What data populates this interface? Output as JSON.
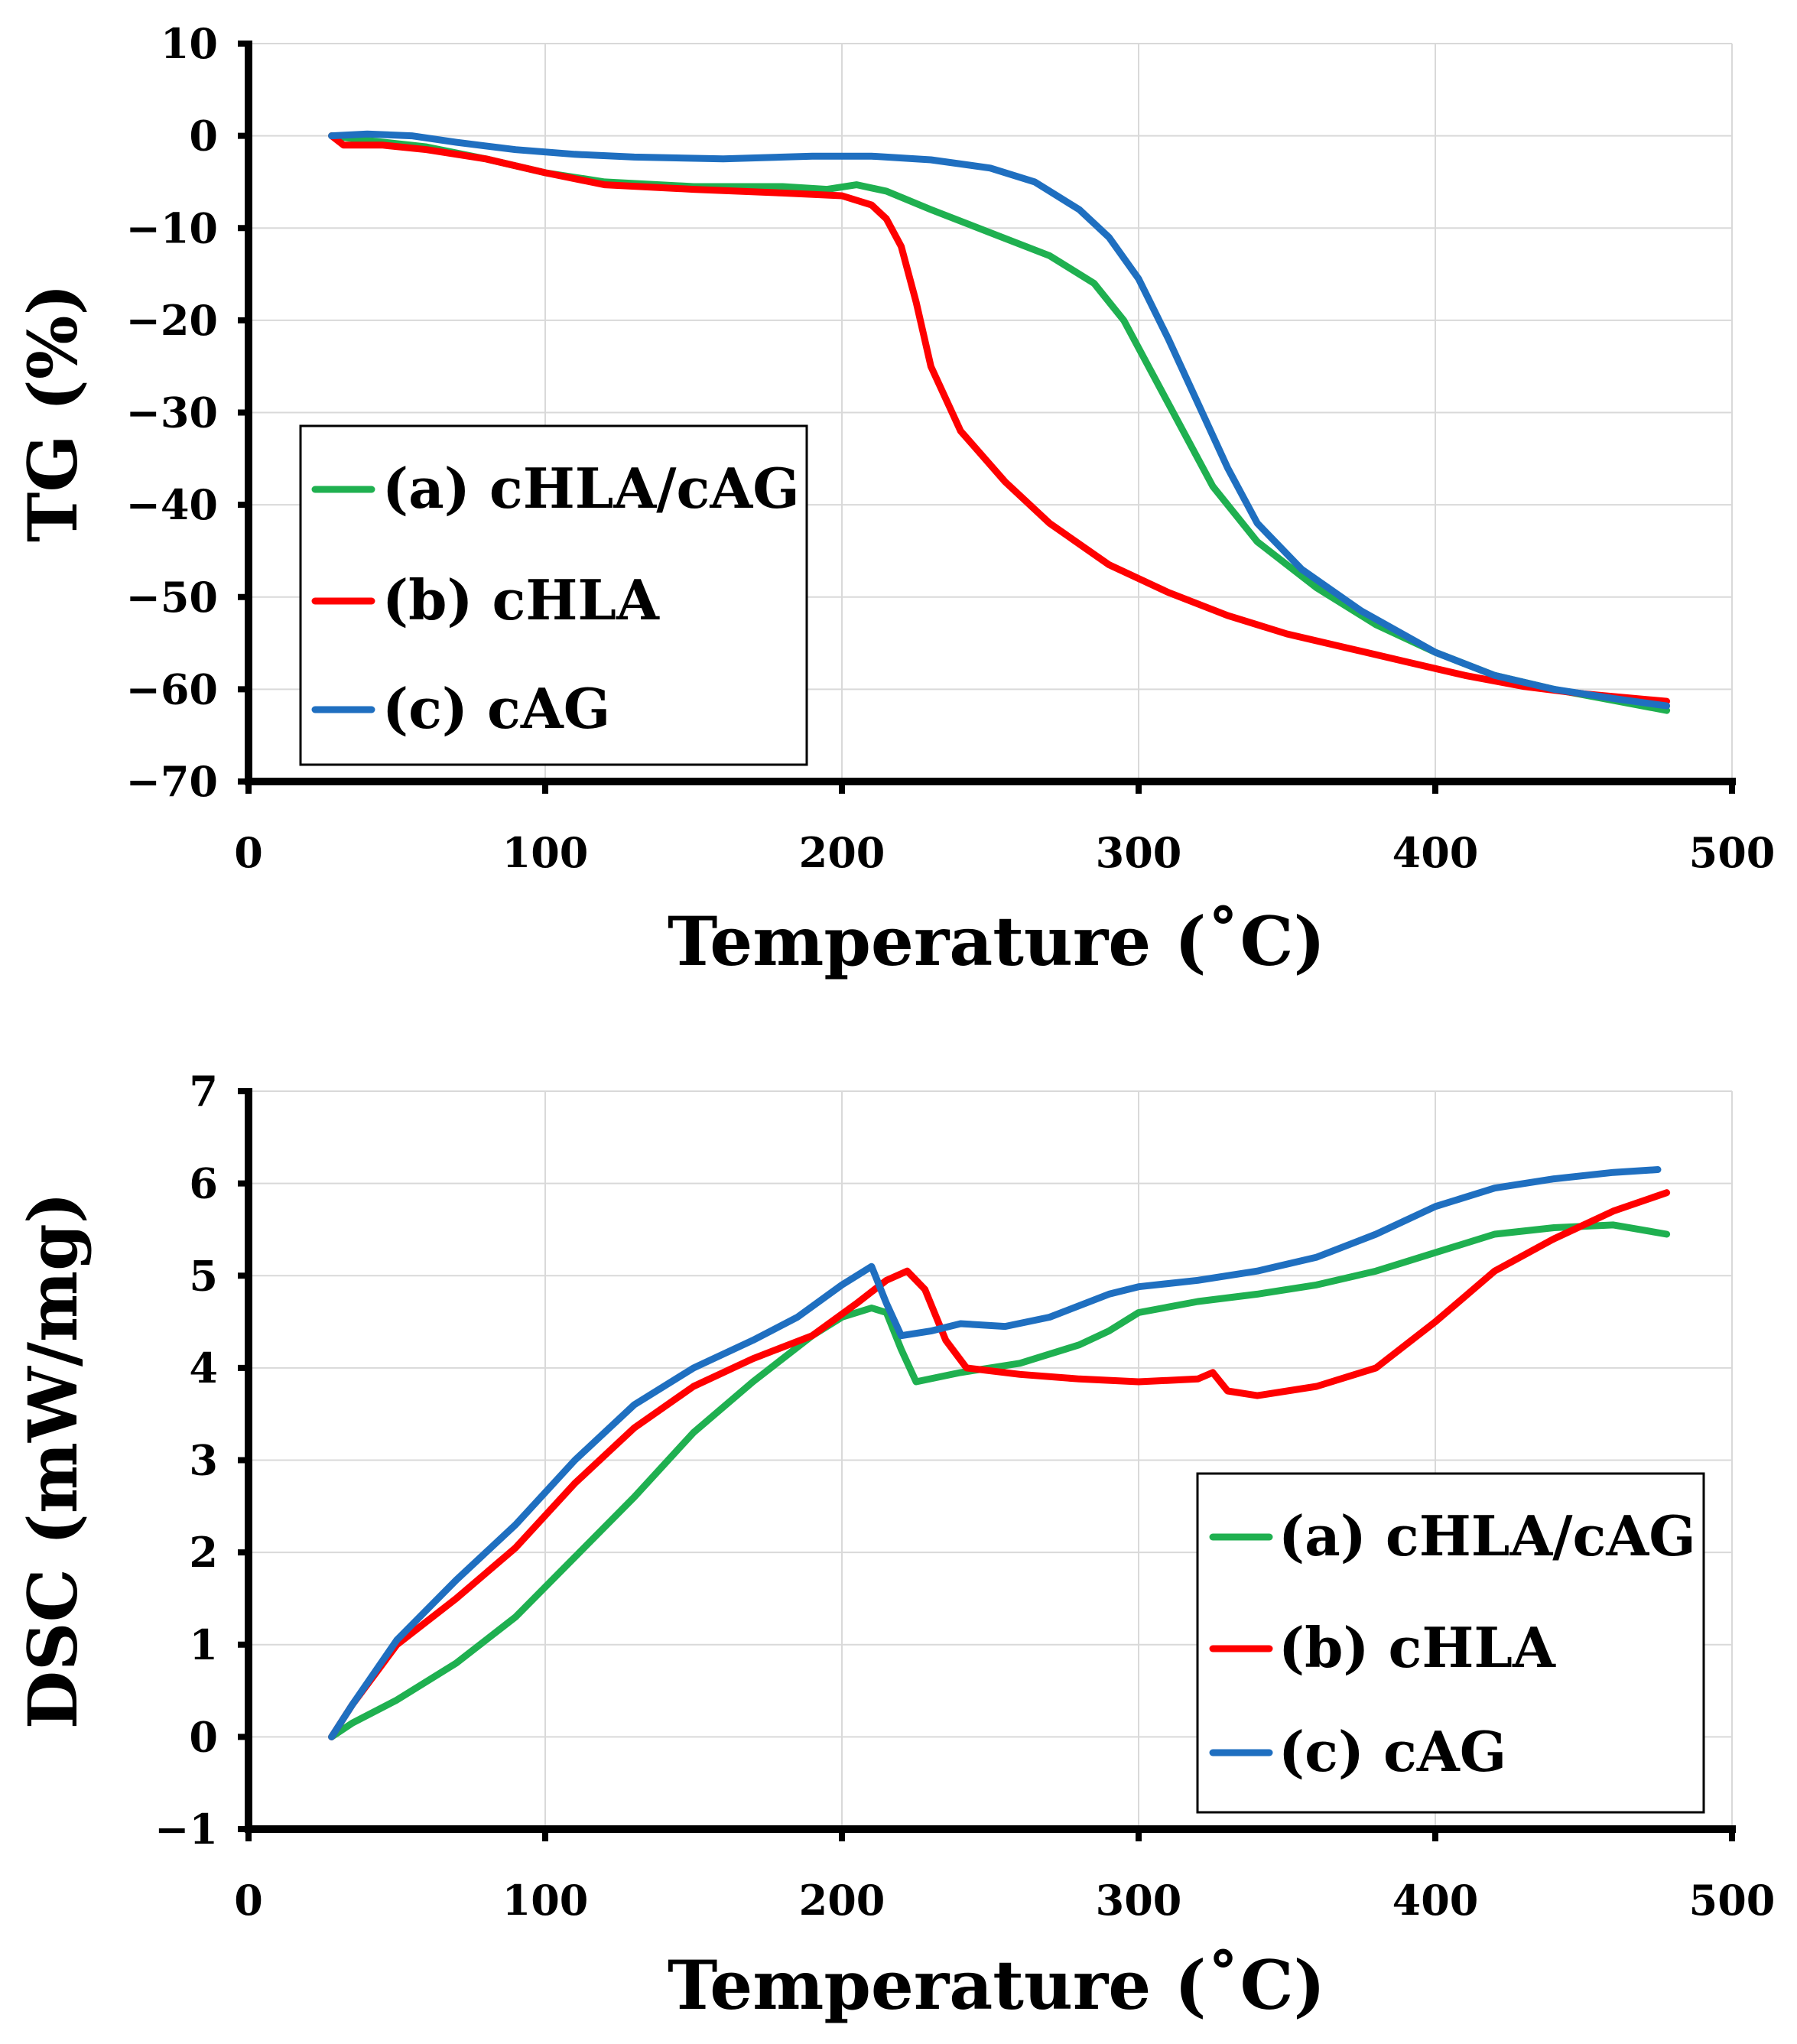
{
  "colors": {
    "a": "#1fb050",
    "b": "#ff0000",
    "c": "#1f6fc0"
  },
  "chart_data": [
    {
      "type": "line",
      "title": "",
      "xlabel": "Temperature (˚C)",
      "ylabel": "TG (%)",
      "xlim": [
        0,
        500
      ],
      "ylim": [
        -70,
        10
      ],
      "xticks": [
        0,
        100,
        200,
        300,
        400,
        500
      ],
      "yticks": [
        10,
        0,
        -10,
        -20,
        -30,
        -40,
        -50,
        -60,
        -70
      ],
      "xtick_labels": [
        "0",
        "100",
        "200",
        "300",
        "400",
        "500"
      ],
      "ytick_labels": [
        "10",
        "0",
        "−10",
        "−20",
        "−30",
        "−40",
        "−50",
        "−60",
        "−70"
      ],
      "grid": true,
      "legend": "left",
      "series": [
        {
          "name": "(a) cHLA/cAG",
          "color_key": "a",
          "points": [
            [
              28,
              0
            ],
            [
              40,
              -0.5
            ],
            [
              60,
              -1.2
            ],
            [
              80,
              -2.5
            ],
            [
              100,
              -4
            ],
            [
              120,
              -5
            ],
            [
              150,
              -5.5
            ],
            [
              180,
              -5.5
            ],
            [
              195,
              -5.8
            ],
            [
              205,
              -5.3
            ],
            [
              215,
              -6
            ],
            [
              230,
              -8
            ],
            [
              250,
              -10.5
            ],
            [
              270,
              -13
            ],
            [
              285,
              -16
            ],
            [
              295,
              -20
            ],
            [
              305,
              -26
            ],
            [
              315,
              -32
            ],
            [
              325,
              -38
            ],
            [
              340,
              -44
            ],
            [
              360,
              -49
            ],
            [
              380,
              -53
            ],
            [
              400,
              -56
            ],
            [
              420,
              -58.5
            ],
            [
              440,
              -60
            ],
            [
              460,
              -61.2
            ],
            [
              478,
              -62.3
            ]
          ]
        },
        {
          "name": "(b) cHLA",
          "color_key": "b",
          "points": [
            [
              28,
              0
            ],
            [
              32,
              -1
            ],
            [
              45,
              -1
            ],
            [
              60,
              -1.5
            ],
            [
              80,
              -2.5
            ],
            [
              100,
              -4
            ],
            [
              120,
              -5.3
            ],
            [
              150,
              -5.8
            ],
            [
              180,
              -6.2
            ],
            [
              200,
              -6.5
            ],
            [
              210,
              -7.5
            ],
            [
              215,
              -9
            ],
            [
              220,
              -12
            ],
            [
              225,
              -18
            ],
            [
              230,
              -25
            ],
            [
              240,
              -32
            ],
            [
              255,
              -37.5
            ],
            [
              270,
              -42
            ],
            [
              290,
              -46.5
            ],
            [
              310,
              -49.5
            ],
            [
              330,
              -52
            ],
            [
              350,
              -54
            ],
            [
              370,
              -55.5
            ],
            [
              390,
              -57
            ],
            [
              410,
              -58.5
            ],
            [
              430,
              -59.7
            ],
            [
              450,
              -60.5
            ],
            [
              478,
              -61.3
            ]
          ]
        },
        {
          "name": "(c) cAG",
          "color_key": "c",
          "points": [
            [
              28,
              0
            ],
            [
              40,
              0.2
            ],
            [
              55,
              0
            ],
            [
              70,
              -0.7
            ],
            [
              90,
              -1.5
            ],
            [
              110,
              -2
            ],
            [
              130,
              -2.3
            ],
            [
              160,
              -2.5
            ],
            [
              190,
              -2.2
            ],
            [
              210,
              -2.2
            ],
            [
              230,
              -2.6
            ],
            [
              250,
              -3.5
            ],
            [
              265,
              -5
            ],
            [
              280,
              -8
            ],
            [
              290,
              -11
            ],
            [
              300,
              -15.5
            ],
            [
              310,
              -22
            ],
            [
              320,
              -29
            ],
            [
              330,
              -36
            ],
            [
              340,
              -42
            ],
            [
              355,
              -47
            ],
            [
              375,
              -51.5
            ],
            [
              400,
              -56
            ],
            [
              420,
              -58.5
            ],
            [
              440,
              -60
            ],
            [
              460,
              -61
            ],
            [
              478,
              -61.8
            ]
          ]
        }
      ]
    },
    {
      "type": "line",
      "title": "",
      "xlabel": "Temperature (˚C)",
      "ylabel": "DSC (mW/mg)",
      "xlim": [
        0,
        500
      ],
      "ylim": [
        -1,
        7
      ],
      "xticks": [
        0,
        100,
        200,
        300,
        400,
        500
      ],
      "yticks": [
        7,
        6,
        5,
        4,
        3,
        2,
        1,
        0,
        -1
      ],
      "xtick_labels": [
        "0",
        "100",
        "200",
        "300",
        "400",
        "500"
      ],
      "ytick_labels": [
        "7",
        "6",
        "5",
        "4",
        "3",
        "2",
        "1",
        "0",
        "−1"
      ],
      "grid": true,
      "legend": "bottom-right",
      "series": [
        {
          "name": "(a) cHLA/cAG",
          "color_key": "a",
          "points": [
            [
              28,
              0
            ],
            [
              35,
              0.15
            ],
            [
              50,
              0.4
            ],
            [
              70,
              0.8
            ],
            [
              90,
              1.3
            ],
            [
              110,
              1.95
            ],
            [
              130,
              2.6
            ],
            [
              150,
              3.3
            ],
            [
              170,
              3.85
            ],
            [
              190,
              4.35
            ],
            [
              200,
              4.55
            ],
            [
              210,
              4.65
            ],
            [
              215,
              4.6
            ],
            [
              220,
              4.2
            ],
            [
              225,
              3.85
            ],
            [
              240,
              3.95
            ],
            [
              260,
              4.05
            ],
            [
              280,
              4.25
            ],
            [
              290,
              4.4
            ],
            [
              300,
              4.6
            ],
            [
              320,
              4.72
            ],
            [
              340,
              4.8
            ],
            [
              360,
              4.9
            ],
            [
              380,
              5.05
            ],
            [
              400,
              5.25
            ],
            [
              420,
              5.45
            ],
            [
              440,
              5.52
            ],
            [
              460,
              5.55
            ],
            [
              478,
              5.45
            ]
          ]
        },
        {
          "name": "(b) cHLA",
          "color_key": "b",
          "points": [
            [
              28,
              0
            ],
            [
              35,
              0.35
            ],
            [
              50,
              1.0
            ],
            [
              70,
              1.5
            ],
            [
              90,
              2.05
            ],
            [
              110,
              2.75
            ],
            [
              130,
              3.35
            ],
            [
              150,
              3.8
            ],
            [
              170,
              4.1
            ],
            [
              190,
              4.35
            ],
            [
              205,
              4.7
            ],
            [
              215,
              4.95
            ],
            [
              222,
              5.05
            ],
            [
              228,
              4.85
            ],
            [
              235,
              4.3
            ],
            [
              242,
              4.0
            ],
            [
              260,
              3.93
            ],
            [
              280,
              3.88
            ],
            [
              300,
              3.85
            ],
            [
              320,
              3.88
            ],
            [
              325,
              3.95
            ],
            [
              330,
              3.75
            ],
            [
              340,
              3.7
            ],
            [
              360,
              3.8
            ],
            [
              380,
              4.0
            ],
            [
              400,
              4.5
            ],
            [
              420,
              5.05
            ],
            [
              440,
              5.4
            ],
            [
              460,
              5.7
            ],
            [
              478,
              5.9
            ]
          ]
        },
        {
          "name": "(c) cAG",
          "color_key": "c",
          "points": [
            [
              28,
              0
            ],
            [
              35,
              0.35
            ],
            [
              50,
              1.05
            ],
            [
              70,
              1.7
            ],
            [
              90,
              2.3
            ],
            [
              110,
              3.0
            ],
            [
              130,
              3.6
            ],
            [
              150,
              4.0
            ],
            [
              170,
              4.3
            ],
            [
              185,
              4.55
            ],
            [
              200,
              4.9
            ],
            [
              210,
              5.1
            ],
            [
              215,
              4.7
            ],
            [
              220,
              4.35
            ],
            [
              230,
              4.4
            ],
            [
              240,
              4.48
            ],
            [
              255,
              4.45
            ],
            [
              270,
              4.55
            ],
            [
              290,
              4.8
            ],
            [
              300,
              4.88
            ],
            [
              320,
              4.95
            ],
            [
              340,
              5.05
            ],
            [
              360,
              5.2
            ],
            [
              380,
              5.45
            ],
            [
              400,
              5.75
            ],
            [
              420,
              5.95
            ],
            [
              440,
              6.05
            ],
            [
              460,
              6.12
            ],
            [
              475,
              6.15
            ]
          ]
        }
      ]
    }
  ]
}
